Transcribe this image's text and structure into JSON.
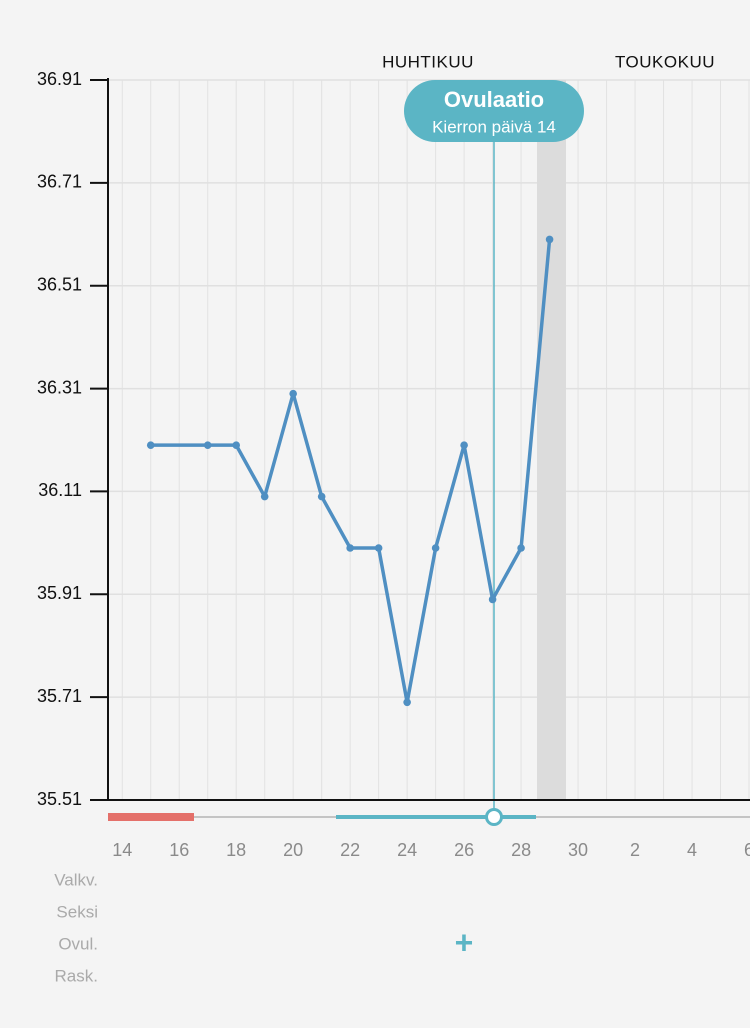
{
  "chart_data": {
    "type": "line",
    "months": [
      "HUHTIKUU",
      "TOUKOKUU"
    ],
    "annotation": {
      "title": "Ovulaatio",
      "subtitle": "Kierron päivä 14"
    },
    "row_labels": [
      "Valkv.",
      "Seksi",
      "Ovul.",
      "Rask."
    ],
    "add_button": "+",
    "xlim": [
      -0.5,
      22
    ],
    "xticks": [
      {
        "value": 0,
        "label": "14"
      },
      {
        "value": 2,
        "label": "16"
      },
      {
        "value": 4,
        "label": "18"
      },
      {
        "value": 6,
        "label": "20"
      },
      {
        "value": 8,
        "label": "22"
      },
      {
        "value": 10,
        "label": "24"
      },
      {
        "value": 12,
        "label": "26"
      },
      {
        "value": 14,
        "label": "28"
      },
      {
        "value": 16,
        "label": "30"
      },
      {
        "value": 18,
        "label": "2"
      },
      {
        "value": 20,
        "label": "4"
      },
      {
        "value": 22,
        "label": "6"
      }
    ],
    "ylim": [
      35.51,
      36.91
    ],
    "yticks": [
      35.51,
      35.71,
      35.91,
      36.11,
      36.31,
      36.51,
      36.71,
      36.91
    ],
    "grid": true,
    "series": [
      {
        "color": "#4f8fc2",
        "x": [
          1,
          3,
          4,
          5,
          6,
          7,
          8,
          9,
          10,
          11,
          12,
          13,
          14,
          15
        ],
        "values": [
          36.2,
          36.2,
          36.2,
          36.1,
          36.3,
          36.1,
          36.0,
          36.0,
          35.7,
          36.0,
          36.2,
          35.9,
          36.0,
          36.6
        ]
      }
    ]
  }
}
